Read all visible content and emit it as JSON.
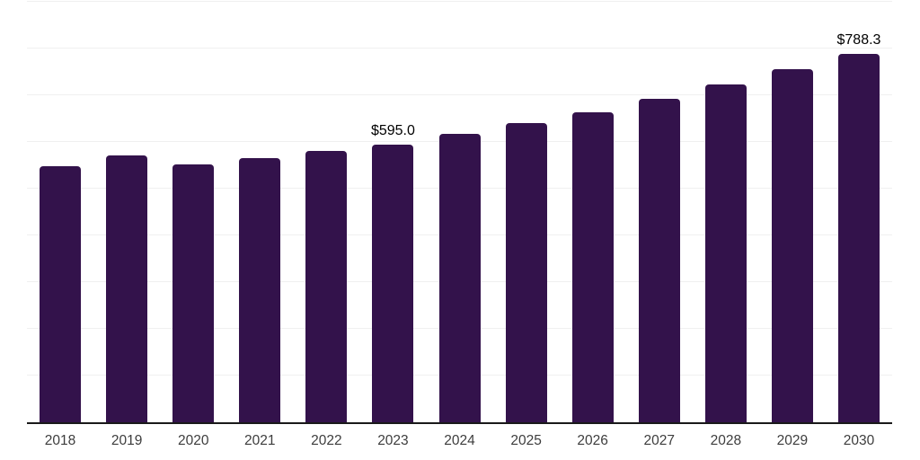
{
  "chart_data": {
    "type": "bar",
    "title": "",
    "xlabel": "",
    "ylabel": "",
    "categories": [
      "2018",
      "2019",
      "2020",
      "2021",
      "2022",
      "2023",
      "2024",
      "2025",
      "2026",
      "2027",
      "2028",
      "2029",
      "2030"
    ],
    "values": [
      548,
      571,
      551,
      566,
      580,
      595.0,
      617,
      640,
      663,
      692,
      724,
      756,
      788.3
    ],
    "point_labels": [
      "",
      "",
      "",
      "",
      "",
      "$595.0",
      "",
      "",
      "",
      "",
      "",
      "",
      "$788.3"
    ],
    "ylim": [
      0,
      900
    ],
    "gridline_step": 100,
    "grid": true,
    "legend": false,
    "colors": {
      "bar": "#33124B",
      "axis_line": "#1a1a1a",
      "gridline": "#f0f0f0",
      "tick_label": "#3d3d3d",
      "data_label": "#000000"
    }
  }
}
